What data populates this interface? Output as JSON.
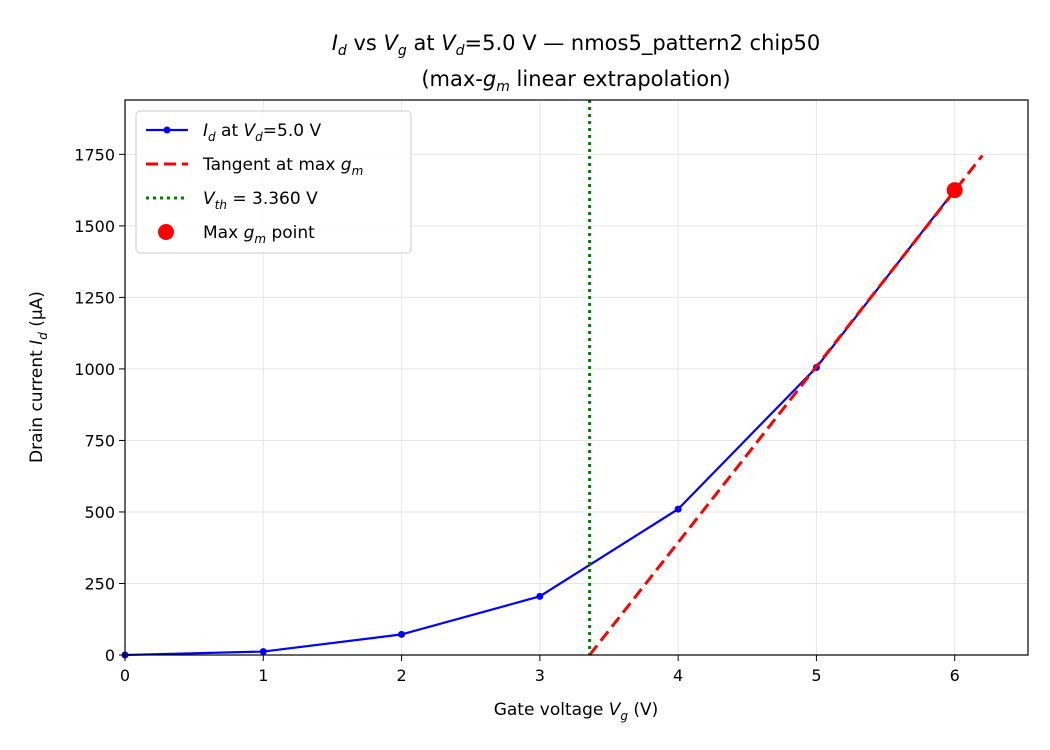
{
  "chart_data": {
    "type": "line",
    "title_line1": {
      "pre": "I",
      "pre_sub": "d",
      "mid1": " vs ",
      "mid_var": "V",
      "mid_sub": "g",
      "mid2": " at ",
      "vd_var": "V",
      "vd_sub": "d",
      "rest": "=5.0 V — nmos5_pattern2 chip50"
    },
    "title_line2": {
      "pre": "(max-",
      "var": "g",
      "sub": "m",
      "post": " linear extrapolation)"
    },
    "xlabel": {
      "pre": "Gate voltage ",
      "var": "V",
      "sub": "g",
      "post": " (V)"
    },
    "ylabel": {
      "pre": "Drain current ",
      "var": "I",
      "sub": "d",
      "post": " (μA)"
    },
    "xlim": [
      0,
      6.53
    ],
    "ylim": [
      0,
      1940
    ],
    "xticks": [
      0,
      1,
      2,
      3,
      4,
      5,
      6
    ],
    "yticks": [
      0,
      250,
      500,
      750,
      1000,
      1250,
      1500,
      1750
    ],
    "grid": true,
    "legend_position": "upper-left",
    "series": [
      {
        "name": "I_d at V_d=5.0 V",
        "kind": "line-marker",
        "color": "#0000ff",
        "x": [
          0,
          1,
          2,
          3,
          4,
          5,
          6
        ],
        "y": [
          0,
          12,
          72,
          205,
          510,
          1005,
          1625
        ]
      },
      {
        "name": "Tangent at max g_m",
        "kind": "dashed-line",
        "color": "#ff0000",
        "x": [
          3.36,
          6.2
        ],
        "y": [
          0,
          1746
        ]
      },
      {
        "name": "V_th = 3.360 V",
        "kind": "vline-dotted",
        "color": "#008000",
        "x": 3.36
      },
      {
        "name": "Max g_m point",
        "kind": "point",
        "color": "#ff0000",
        "x": 6,
        "y": 1625
      }
    ],
    "legend": [
      {
        "parts": [
          [
            "I",
            "it"
          ],
          [
            "d",
            "sub"
          ],
          [
            " at ",
            "n"
          ],
          [
            "V",
            "it"
          ],
          [
            "d",
            "sub"
          ],
          [
            "=5.0 V",
            "n"
          ]
        ]
      },
      {
        "parts": [
          [
            "Tangent at max ",
            "n"
          ],
          [
            "g",
            "it"
          ],
          [
            "m",
            "sub"
          ]
        ]
      },
      {
        "parts": [
          [
            "V",
            "it"
          ],
          [
            "th",
            "sub"
          ],
          [
            " = 3.360 V",
            "n"
          ]
        ]
      },
      {
        "parts": [
          [
            "Max ",
            "n"
          ],
          [
            "g",
            "it"
          ],
          [
            "m",
            "sub"
          ],
          [
            " point",
            "n"
          ]
        ]
      }
    ]
  }
}
